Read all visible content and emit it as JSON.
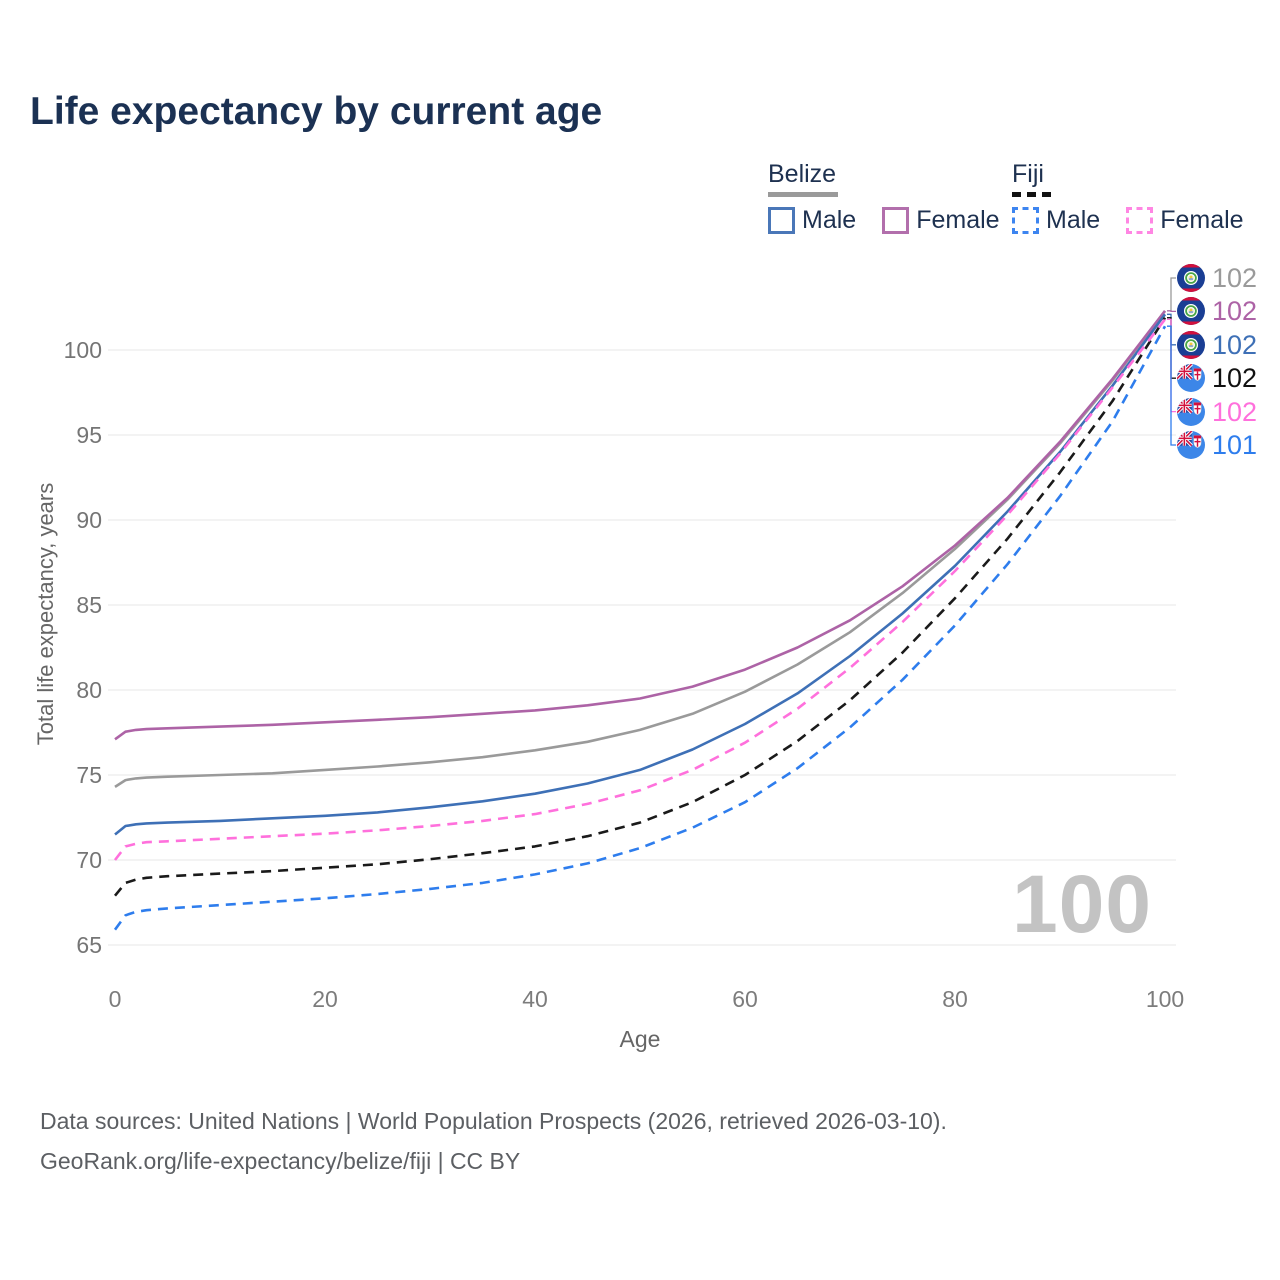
{
  "title": "Life expectancy by current age",
  "watermark": "100",
  "legend": {
    "groups": [
      {
        "label": "Belize",
        "line_style": "solid",
        "underline_color": "#9a9a9a",
        "items": [
          {
            "label": "Male",
            "color": "#4a77b8",
            "dashed": false
          },
          {
            "label": "Female",
            "color": "#b26fac",
            "dashed": false
          }
        ]
      },
      {
        "label": "Fiji",
        "line_style": "dashed",
        "underline_color": "#111111",
        "items": [
          {
            "label": "Male",
            "color": "#3d85f0",
            "dashed": true
          },
          {
            "label": "Female",
            "color": "#ff86e3",
            "dashed": true
          }
        ]
      }
    ]
  },
  "footer": {
    "line1": "Data sources: United Nations | World Population Prospects (2026, retrieved 2026-03-10).",
    "line2": "GeoRank.org/life-expectancy/belize/fiji | CC BY"
  },
  "chart_data": {
    "type": "line",
    "title": "Life expectancy by current age",
    "xlabel": "Age",
    "ylabel": "Total life expectancy, years",
    "xlim": [
      0,
      100
    ],
    "ylim": [
      65,
      103
    ],
    "x_ticks": [
      0,
      20,
      40,
      60,
      80,
      100
    ],
    "y_ticks": [
      65,
      70,
      75,
      80,
      85,
      90,
      95,
      100
    ],
    "grid": "horizontal",
    "legend_position": "top-right",
    "x": [
      0,
      1,
      2,
      3,
      5,
      10,
      15,
      20,
      25,
      30,
      35,
      40,
      45,
      50,
      55,
      60,
      65,
      70,
      75,
      80,
      85,
      90,
      95,
      100
    ],
    "series": [
      {
        "name": "Belize Total",
        "country": "Belize",
        "sex": "Total",
        "color": "#9a9a9a",
        "line_style": "solid",
        "flag": "belize",
        "end_label": "102",
        "end_label_color": "#9a9a9a",
        "values": [
          74.3,
          74.7,
          74.8,
          74.85,
          74.9,
          75.0,
          75.1,
          75.3,
          75.5,
          75.75,
          76.05,
          76.45,
          76.95,
          77.65,
          78.6,
          79.9,
          81.5,
          83.4,
          85.7,
          88.3,
          91.2,
          94.5,
          98.2,
          102.3
        ]
      },
      {
        "name": "Belize Female",
        "country": "Belize",
        "sex": "Female",
        "color": "#ad63a6",
        "line_style": "solid",
        "flag": "belize",
        "end_label": "102",
        "end_label_color": "#ad63a6",
        "values": [
          77.1,
          77.55,
          77.65,
          77.7,
          77.75,
          77.85,
          77.95,
          78.1,
          78.25,
          78.4,
          78.6,
          78.8,
          79.1,
          79.5,
          80.2,
          81.2,
          82.5,
          84.1,
          86.1,
          88.5,
          91.3,
          94.6,
          98.3,
          102.3
        ]
      },
      {
        "name": "Belize Male",
        "country": "Belize",
        "sex": "Male",
        "color": "#3e70b6",
        "line_style": "solid",
        "flag": "belize",
        "end_label": "102",
        "end_label_color": "#3e70b6",
        "values": [
          71.5,
          72.0,
          72.1,
          72.15,
          72.2,
          72.3,
          72.45,
          72.6,
          72.8,
          73.1,
          73.45,
          73.9,
          74.5,
          75.3,
          76.5,
          78.0,
          79.8,
          82.0,
          84.5,
          87.3,
          90.5,
          94.0,
          97.9,
          102.1
        ]
      },
      {
        "name": "Fiji Total",
        "country": "Fiji",
        "sex": "Total",
        "color": "#1a1a1a",
        "line_style": "dashed",
        "flag": "fiji",
        "end_label": "102",
        "end_label_color": "#111111",
        "values": [
          67.9,
          68.65,
          68.85,
          68.95,
          69.05,
          69.2,
          69.35,
          69.55,
          69.75,
          70.05,
          70.4,
          70.8,
          71.4,
          72.2,
          73.4,
          75.0,
          77.0,
          79.4,
          82.2,
          85.4,
          88.9,
          92.8,
          97.0,
          101.9
        ]
      },
      {
        "name": "Fiji Female",
        "country": "Fiji",
        "sex": "Female",
        "color": "#ff70dc",
        "line_style": "dashed",
        "flag": "fiji",
        "end_label": "102",
        "end_label_color": "#ff70dc",
        "values": [
          70.0,
          70.8,
          70.95,
          71.05,
          71.1,
          71.25,
          71.4,
          71.55,
          71.75,
          72.0,
          72.3,
          72.7,
          73.3,
          74.1,
          75.3,
          76.9,
          78.9,
          81.3,
          84.0,
          87.0,
          90.3,
          93.9,
          97.8,
          101.8
        ]
      },
      {
        "name": "Fiji Male",
        "country": "Fiji",
        "sex": "Male",
        "color": "#2e7ded",
        "line_style": "dashed",
        "flag": "fiji",
        "end_label": "101",
        "end_label_color": "#2e7ded",
        "values": [
          65.9,
          66.75,
          66.95,
          67.05,
          67.15,
          67.35,
          67.55,
          67.75,
          68.0,
          68.3,
          68.65,
          69.15,
          69.8,
          70.7,
          71.9,
          73.4,
          75.4,
          77.8,
          80.6,
          83.8,
          87.4,
          91.4,
          95.8,
          101.4
        ]
      }
    ]
  }
}
